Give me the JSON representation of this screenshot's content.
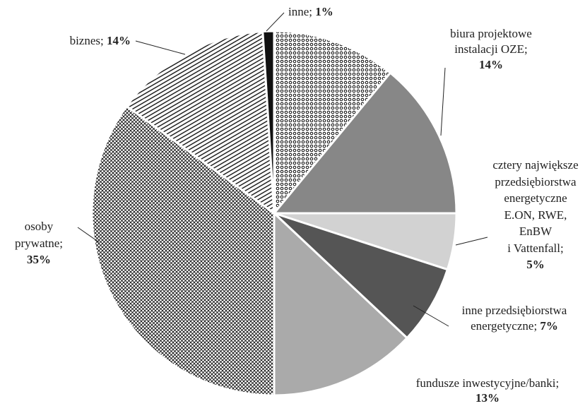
{
  "chart_data": {
    "type": "pie",
    "categories": [
      null,
      "biura projektowe\ninstalacji OZE",
      "cztery największe\nprzedsiębiorstwa\nenergetyczne\nE.ON, RWE,\nEnBW\ni Vattenfall",
      "inne przedsiębiorstwa\nenergetyczne",
      "fundusze inwestycyjne/banki",
      "osoby\nprywatne",
      "biznes",
      "inne"
    ],
    "values": [
      11,
      14,
      5,
      7,
      13,
      35,
      14,
      1
    ],
    "value_labels": [
      null,
      "14%",
      "5%",
      "7%",
      "13%",
      "35%",
      "14%",
      "1%"
    ],
    "label_separator": ";",
    "colors": [
      "#9a9a9a",
      "#878787",
      "#d2d2d2",
      "#555555",
      "#aaaaaa",
      "#9a9a9a",
      "#8a8a8a",
      "#111111"
    ],
    "patterns": [
      "dots",
      "solid",
      "solid",
      "solid",
      "solid",
      "crosshatch",
      "hatch",
      "solid"
    ],
    "start_angle": 0,
    "direction": "clockwise"
  }
}
